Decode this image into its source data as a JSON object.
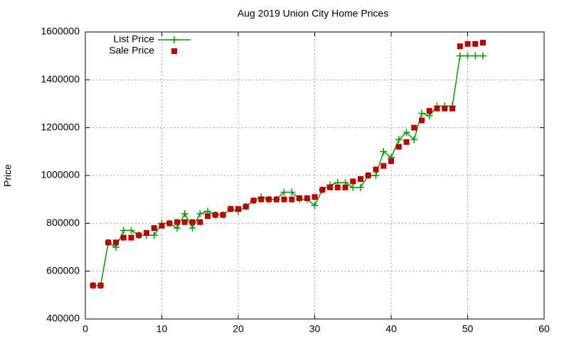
{
  "chart_data": {
    "type": "line",
    "title": "Aug 2019 Union City Home Prices",
    "y_label": "Price",
    "x": [
      1,
      2,
      3,
      4,
      5,
      6,
      7,
      8,
      9,
      10,
      11,
      12,
      13,
      14,
      15,
      16,
      17,
      18,
      19,
      20,
      21,
      22,
      23,
      24,
      25,
      26,
      27,
      28,
      29,
      30,
      31,
      32,
      33,
      34,
      35,
      36,
      37,
      38,
      39,
      40,
      41,
      42,
      43,
      44,
      45,
      46,
      47,
      48,
      49,
      50,
      51,
      52
    ],
    "series": [
      {
        "name": "List Price",
        "color": "#00a000",
        "style": "linespoints",
        "values": [
          540000,
          540000,
          720000,
          700000,
          770000,
          770000,
          750000,
          750000,
          750000,
          800000,
          800000,
          780000,
          840000,
          780000,
          840000,
          850000,
          835000,
          835000,
          860000,
          850000,
          870000,
          895000,
          910000,
          900000,
          900000,
          930000,
          930000,
          900000,
          900000,
          875000,
          940000,
          960000,
          970000,
          970000,
          950000,
          950000,
          1000000,
          1000000,
          1100000,
          1075000,
          1150000,
          1180000,
          1150000,
          1260000,
          1250000,
          1290000,
          1290000,
          1290000,
          1500000,
          1500000,
          1500000,
          1500000
        ]
      },
      {
        "name": "Sale Price",
        "color": "#c00000",
        "style": "points",
        "values": [
          540000,
          540000,
          720000,
          720000,
          740000,
          740000,
          750000,
          760000,
          780000,
          790000,
          800000,
          805000,
          805000,
          805000,
          805000,
          830000,
          835000,
          835000,
          860000,
          860000,
          870000,
          895000,
          900000,
          900000,
          900000,
          900000,
          900000,
          905000,
          905000,
          910000,
          940000,
          950000,
          950000,
          950000,
          975000,
          985000,
          1000000,
          1025000,
          1040000,
          1060000,
          1120000,
          1140000,
          1200000,
          1230000,
          1270000,
          1280000,
          1280000,
          1280000,
          1540000,
          1550000,
          1550000,
          1555000
        ]
      }
    ],
    "xlim": [
      0,
      60
    ],
    "xticks": [
      0,
      10,
      20,
      30,
      40,
      50,
      60
    ],
    "ylim": [
      400000,
      1600000
    ],
    "yticks": [
      400000,
      600000,
      800000,
      1000000,
      1200000,
      1400000,
      1600000
    ],
    "grid": true,
    "legend": "top-left"
  }
}
